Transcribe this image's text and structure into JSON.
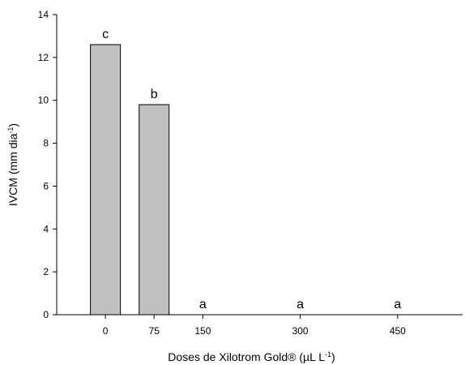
{
  "chart_data": {
    "type": "bar",
    "categories": [
      "0",
      "75",
      "150",
      "300",
      "450"
    ],
    "x": [
      0,
      75,
      150,
      300,
      450
    ],
    "values": [
      12.6,
      9.8,
      0,
      0,
      0
    ],
    "significance_letters": [
      "c",
      "b",
      "a",
      "a",
      "a"
    ],
    "xlabel": {
      "text": "Doses de Xilotrom Gold® (µL L",
      "sup": "-1",
      "suffix": ")"
    },
    "ylabel": {
      "text": "IVCM (mm dia",
      "sup": "-1",
      "suffix": ")"
    },
    "ylim": [
      0,
      14
    ],
    "yticks": [
      0,
      2,
      4,
      6,
      8,
      10,
      12,
      14
    ],
    "xlim": [
      -75,
      550
    ],
    "grid": false,
    "bar_color": "#c0c0c0",
    "bar_edge_color": "#000000"
  }
}
